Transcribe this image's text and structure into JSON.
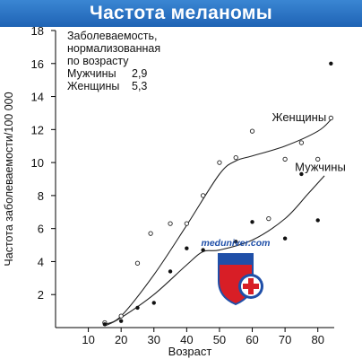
{
  "header": {
    "title": "Частота меланомы"
  },
  "legend": {
    "heading_lines": [
      "Заболеваемость,",
      "нормализованная",
      "по возрасту"
    ],
    "rows": [
      {
        "label": "Мужчины",
        "value": "2,9"
      },
      {
        "label": "Женщины",
        "value": "5,3"
      }
    ]
  },
  "watermark": {
    "text": "meduniver.com"
  },
  "chart_data": {
    "type": "scatter",
    "xlabel": "Возраст",
    "ylabel": "Частота заболеваемости/100 000",
    "xlim": [
      0,
      85
    ],
    "ylim": [
      0,
      18
    ],
    "x_ticks": [
      10,
      20,
      30,
      40,
      50,
      60,
      70,
      80
    ],
    "y_ticks": [
      2,
      4,
      6,
      8,
      10,
      12,
      14,
      16,
      18
    ],
    "grid": false,
    "series": [
      {
        "name": "Женщины",
        "marker": "open-circle",
        "points": [
          [
            15,
            0.3
          ],
          [
            20,
            0.7
          ],
          [
            25,
            3.9
          ],
          [
            29,
            5.7
          ],
          [
            35,
            6.3
          ],
          [
            40,
            6.3
          ],
          [
            45,
            8.0
          ],
          [
            50,
            10.0
          ],
          [
            55,
            10.3
          ],
          [
            60,
            11.9
          ],
          [
            65,
            6.6
          ],
          [
            70,
            10.2
          ],
          [
            75,
            11.2
          ],
          [
            80,
            10.2
          ],
          [
            84,
            12.7
          ]
        ],
        "curve_label": "Женщины",
        "curve": [
          [
            15,
            0.2
          ],
          [
            20,
            0.7
          ],
          [
            30,
            3.2
          ],
          [
            40,
            6.2
          ],
          [
            50,
            9.3
          ],
          [
            55,
            10.1
          ],
          [
            60,
            10.4
          ],
          [
            70,
            11.0
          ],
          [
            80,
            11.9
          ],
          [
            84,
            12.6
          ]
        ]
      },
      {
        "name": "Мужчины",
        "marker": "filled-dot",
        "points": [
          [
            15,
            0.2
          ],
          [
            20,
            0.4
          ],
          [
            25,
            1.2
          ],
          [
            30,
            1.5
          ],
          [
            35,
            3.4
          ],
          [
            40,
            4.8
          ],
          [
            45,
            4.7
          ],
          [
            55,
            5.2
          ],
          [
            60,
            6.4
          ],
          [
            70,
            5.4
          ],
          [
            75,
            9.3
          ],
          [
            80,
            6.5
          ],
          [
            84,
            16.0
          ]
        ],
        "curve_label": "Мужчины",
        "curve": [
          [
            15,
            0.1
          ],
          [
            20,
            0.6
          ],
          [
            30,
            2.0
          ],
          [
            40,
            3.8
          ],
          [
            45,
            4.6
          ],
          [
            50,
            4.7
          ],
          [
            60,
            5.3
          ],
          [
            70,
            6.6
          ],
          [
            77,
            8.1
          ],
          [
            82,
            9.2
          ]
        ]
      }
    ]
  }
}
